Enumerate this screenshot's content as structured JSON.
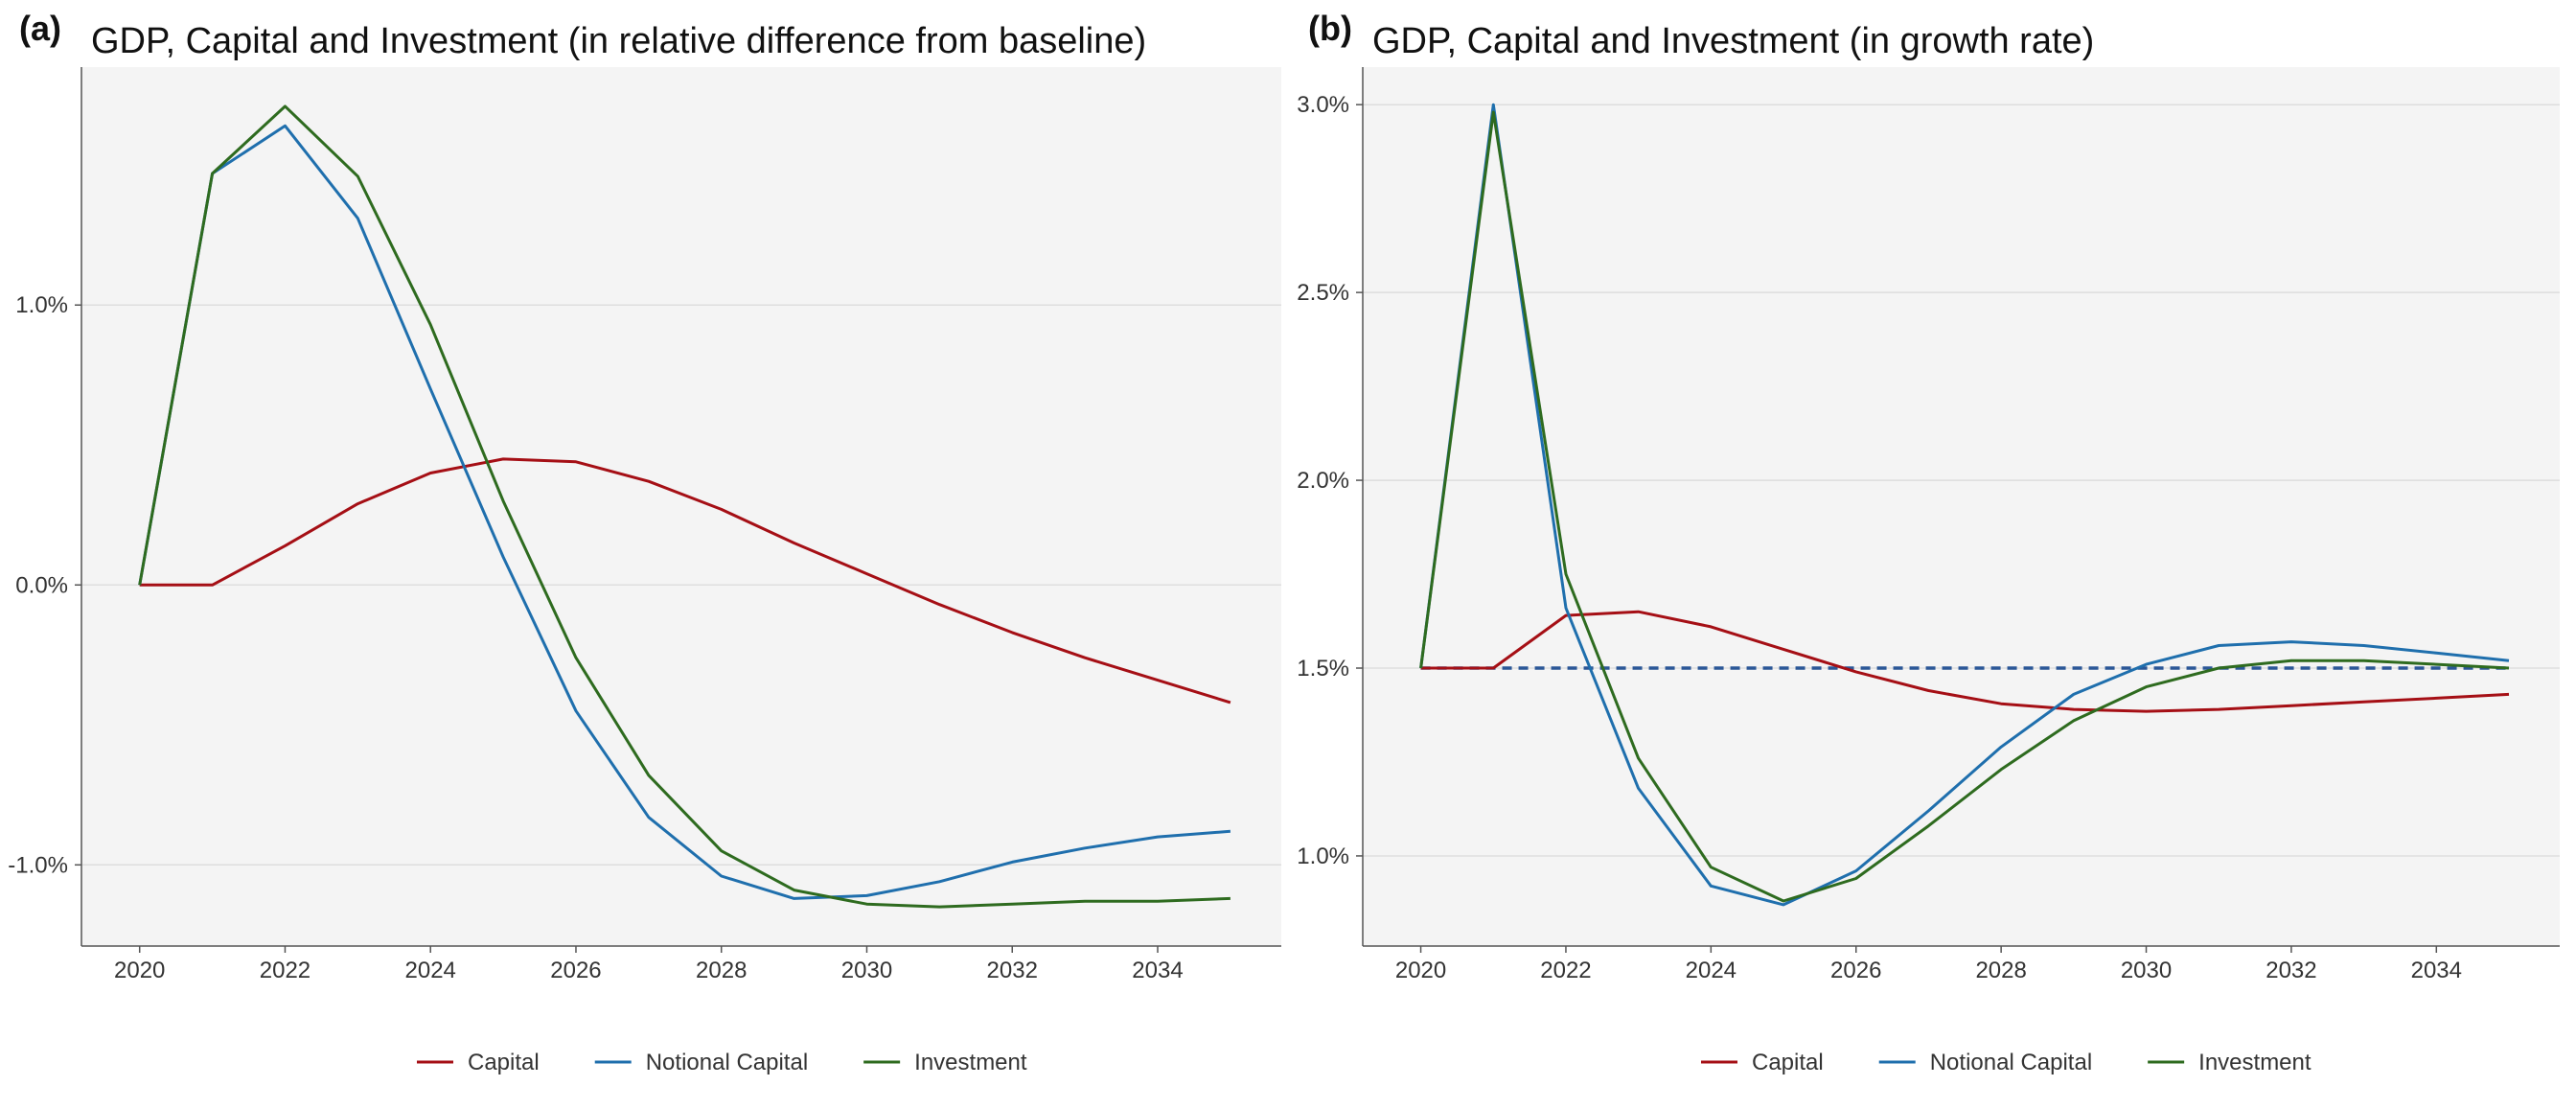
{
  "chart_data": [
    {
      "type": "line",
      "panel_label": "(a)",
      "title": "GDP, Capital and Investment (in relative difference from baseline)",
      "xlabel": "",
      "ylabel": "",
      "x": [
        2020,
        2021,
        2022,
        2023,
        2024,
        2025,
        2026,
        2027,
        2028,
        2029,
        2030,
        2031,
        2032,
        2033,
        2034,
        2035
      ],
      "xlim": [
        2019.2,
        2035.7
      ],
      "ylim": [
        -1.29,
        1.85
      ],
      "x_ticks": [
        2020,
        2022,
        2024,
        2026,
        2028,
        2030,
        2032,
        2034
      ],
      "x_tick_labels": [
        "2020",
        "2022",
        "2024",
        "2026",
        "2028",
        "2030",
        "2032",
        "2034"
      ],
      "y_ticks": [
        -1.0,
        0.0,
        1.0
      ],
      "y_tick_labels": [
        "-1.0%",
        "0.0%",
        "1.0%"
      ],
      "grid": "horizontal",
      "series": [
        {
          "name": "Capital",
          "color": "#a50f15",
          "values": [
            0.0,
            0.0,
            0.14,
            0.29,
            0.4,
            0.45,
            0.44,
            0.37,
            0.27,
            0.15,
            0.04,
            -0.07,
            -0.17,
            -0.26,
            -0.34,
            -0.42
          ]
        },
        {
          "name": "Notional Capital",
          "color": "#1f6fad",
          "values": [
            0.0,
            1.47,
            1.64,
            1.31,
            0.7,
            0.1,
            -0.45,
            -0.83,
            -1.04,
            -1.12,
            -1.11,
            -1.06,
            -0.99,
            -0.94,
            -0.9,
            -0.88
          ]
        },
        {
          "name": "Investment",
          "color": "#2e6b1f",
          "values": [
            0.0,
            1.47,
            1.71,
            1.46,
            0.93,
            0.3,
            -0.26,
            -0.68,
            -0.95,
            -1.09,
            -1.14,
            -1.15,
            -1.14,
            -1.13,
            -1.13,
            -1.12
          ]
        }
      ],
      "legend": "bottom"
    },
    {
      "type": "line",
      "panel_label": "(b)",
      "title": "GDP, Capital and Investment (in growth rate)",
      "xlabel": "",
      "ylabel": "",
      "x": [
        2020,
        2021,
        2022,
        2023,
        2024,
        2025,
        2026,
        2027,
        2028,
        2029,
        2030,
        2031,
        2032,
        2033,
        2034,
        2035
      ],
      "xlim": [
        2019.2,
        2035.7
      ],
      "ylim": [
        0.76,
        3.1
      ],
      "x_ticks": [
        2020,
        2022,
        2024,
        2026,
        2028,
        2030,
        2032,
        2034
      ],
      "x_tick_labels": [
        "2020",
        "2022",
        "2024",
        "2026",
        "2028",
        "2030",
        "2032",
        "2034"
      ],
      "y_ticks": [
        1.0,
        1.5,
        2.0,
        2.5,
        3.0
      ],
      "y_tick_labels": [
        "1.0%",
        "1.5%",
        "2.0%",
        "2.5%",
        "3.0%"
      ],
      "grid": "horizontal",
      "reference_line": {
        "value": 1.5,
        "style": "dashed",
        "color": "#2b5797"
      },
      "series": [
        {
          "name": "Capital",
          "color": "#a50f15",
          "values": [
            1.5,
            1.5,
            1.64,
            1.65,
            1.61,
            1.55,
            1.49,
            1.44,
            1.405,
            1.39,
            1.385,
            1.39,
            1.4,
            1.41,
            1.42,
            1.43
          ]
        },
        {
          "name": "Notional Capital",
          "color": "#1f6fad",
          "values": [
            1.5,
            3.0,
            1.66,
            1.18,
            0.92,
            0.87,
            0.96,
            1.12,
            1.29,
            1.43,
            1.51,
            1.56,
            1.57,
            1.56,
            1.54,
            1.52
          ]
        },
        {
          "name": "Investment",
          "color": "#2e6b1f",
          "values": [
            1.5,
            2.98,
            1.75,
            1.26,
            0.97,
            0.88,
            0.94,
            1.08,
            1.23,
            1.36,
            1.45,
            1.5,
            1.52,
            1.52,
            1.51,
            1.5
          ]
        }
      ],
      "legend": "bottom"
    }
  ]
}
